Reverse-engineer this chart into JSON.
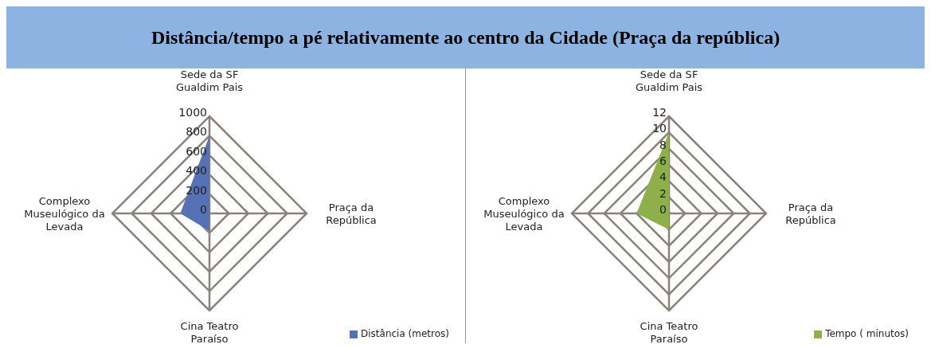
{
  "chart_data": [
    {
      "type": "radar",
      "title": "Distância/tempo a pé relativamente ao centro da Cidade (Praça da república)",
      "categories": [
        "Sede da SF Gualdim Pais",
        "Praça da República",
        "Cina Teatro Paraíso",
        "Complexo Museulógico da Levada"
      ],
      "series": [
        {
          "name": "Distância (metros)",
          "color": "#5572b7",
          "values": [
            800,
            0,
            180,
            300
          ]
        }
      ],
      "ylim": [
        0,
        1000
      ],
      "yticks": [
        0,
        200,
        400,
        600,
        800,
        1000
      ],
      "grid": true,
      "legend": "bottom right"
    },
    {
      "type": "radar",
      "categories": [
        "Sede da SF Gualdim Pais",
        "Praça da República",
        "Cina Teatro Paraíso",
        "Complexo Museulógico da Levada"
      ],
      "series": [
        {
          "name": "Tempo ( minutos)",
          "color": "#8db04a",
          "values": [
            10,
            0,
            2,
            4
          ]
        }
      ],
      "ylim": [
        0,
        12
      ],
      "yticks": [
        0,
        2,
        4,
        6,
        8,
        10,
        12
      ],
      "grid": true,
      "legend": "bottom right"
    }
  ]
}
